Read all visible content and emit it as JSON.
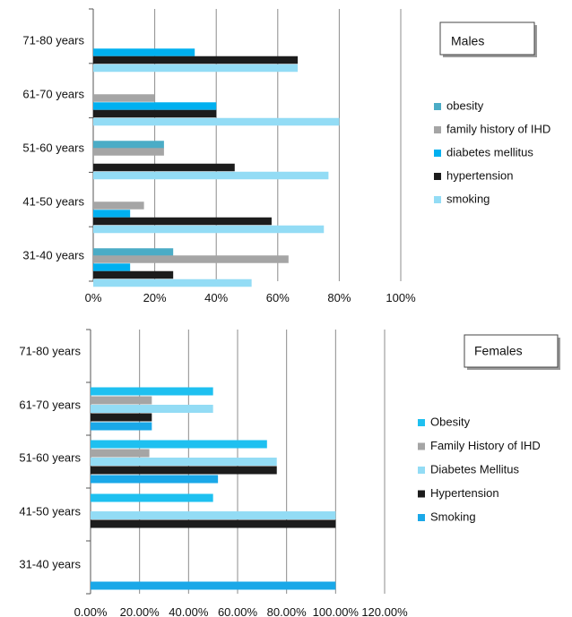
{
  "chart_data": [
    {
      "type": "bar",
      "orientation": "horizontal",
      "title": "Males",
      "categories": [
        "71-80 years",
        "61-70 years",
        "51-60 years",
        "41-50 years",
        "31-40 years"
      ],
      "xlim": [
        0,
        1
      ],
      "x_ticks": [
        "0%",
        "20%",
        "40%",
        "60%",
        "80%",
        "100%"
      ],
      "grid": true,
      "legend_position": "right",
      "series": [
        {
          "name": "obesity",
          "color": "#4BACC6",
          "values": [
            0,
            0,
            0.23,
            0,
            0.26
          ]
        },
        {
          "name": "family history of IHD",
          "color": "#A5A5A5",
          "values": [
            0,
            0.2,
            0.23,
            0.165,
            0.635
          ]
        },
        {
          "name": "diabetes mellitus",
          "color": "#00B0F0",
          "values": [
            0.33,
            0.4,
            0,
            0.12,
            0.12
          ]
        },
        {
          "name": "hypertension",
          "color": "#1C1C1C",
          "values": [
            0.665,
            0.4,
            0.46,
            0.58,
            0.26
          ]
        },
        {
          "name": "smoking",
          "color": "#93DCF5",
          "values": [
            0.665,
            0.8,
            0.765,
            0.75,
            0.515
          ]
        }
      ]
    },
    {
      "type": "bar",
      "orientation": "horizontal",
      "title": "Females",
      "categories": [
        "71-80 years",
        "61-70 years",
        "51-60 years",
        "41-50 years",
        "31-40 years"
      ],
      "xlim": [
        0,
        1.2
      ],
      "x_ticks": [
        "0.00%",
        "20.00%",
        "40.00%",
        "60.00%",
        "80.00%",
        "100.00%",
        "120.00%"
      ],
      "grid": true,
      "legend_position": "right",
      "series": [
        {
          "name": "Obesity",
          "color": "#1EC0F0",
          "values": [
            0,
            0.5,
            0.72,
            0.5,
            0
          ]
        },
        {
          "name": "Family History of IHD",
          "color": "#A5A5A5",
          "values": [
            0,
            0.25,
            0.24,
            0,
            0
          ]
        },
        {
          "name": "Diabetes Mellitus",
          "color": "#93DCF5",
          "values": [
            0,
            0.5,
            0.76,
            1.0,
            0
          ]
        },
        {
          "name": "Hypertension",
          "color": "#1C1C1C",
          "values": [
            0,
            0.25,
            0.76,
            1.0,
            0
          ]
        },
        {
          "name": "Smoking",
          "color": "#1AA8E8",
          "values": [
            0,
            0.25,
            0.52,
            0,
            1.0
          ]
        }
      ]
    }
  ]
}
